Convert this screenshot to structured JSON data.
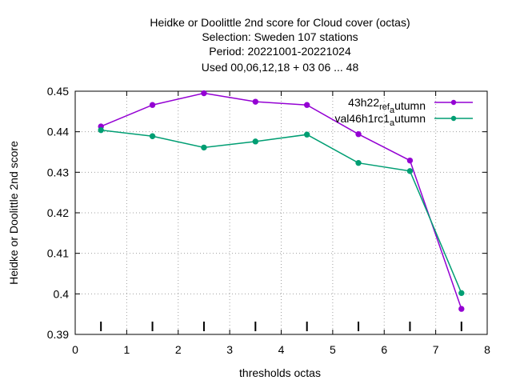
{
  "chart_data": {
    "type": "line",
    "title_lines": [
      "Heidke or Doolittle 2nd score  for Cloud cover (octas)",
      "Selection: Sweden    107 stations",
      "Period: 20221001-20221024",
      "Used  00,06,12,18  + 03 06 ... 48"
    ],
    "xlabel": "thresholds octas",
    "ylabel": "Heidke or Doolittle 2nd score",
    "xlim": [
      0,
      8
    ],
    "ylim": [
      0.39,
      0.45
    ],
    "xticks": [
      "0",
      "1",
      "2",
      "3",
      "4",
      "5",
      "6",
      "7",
      "8"
    ],
    "yticks": [
      "0.39",
      "0.4",
      "0.41",
      "0.42",
      "0.43",
      "0.44",
      "0.45"
    ],
    "grid": true,
    "legend_position": "top-right",
    "x": [
      0.5,
      1.5,
      2.5,
      3.5,
      4.5,
      5.5,
      6.5,
      7.5
    ],
    "series": [
      {
        "name": "43h22_ref_autumn",
        "legend_parts": [
          "43h22",
          "ref",
          "a",
          "utumn"
        ],
        "color": "#9400d3",
        "values": [
          0.4413,
          0.4466,
          0.4495,
          0.4474,
          0.4466,
          0.4394,
          0.4329,
          0.3963
        ]
      },
      {
        "name": "val46h1rc1_autumn",
        "legend_parts": [
          "val46h1rc1",
          "a",
          "utumn"
        ],
        "color": "#009e73",
        "values": [
          0.4404,
          0.4389,
          0.4361,
          0.4376,
          0.4393,
          0.4323,
          0.4303,
          0.4002
        ]
      }
    ],
    "rug_x": [
      0.5,
      1.5,
      2.5,
      3.5,
      4.5,
      5.5,
      6.5,
      7.5
    ]
  }
}
